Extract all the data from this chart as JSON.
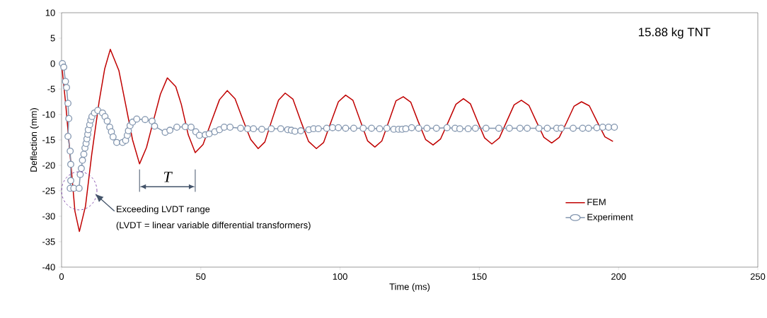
{
  "chart_data": {
    "type": "line",
    "title": "15.88 kg TNT",
    "xlabel": "Time (ms)",
    "ylabel": "Deflection (mm)",
    "xlim": [
      0,
      250
    ],
    "ylim": [
      -40,
      10
    ],
    "xticks": [
      0,
      50,
      100,
      150,
      200,
      250
    ],
    "yticks": [
      -40,
      -35,
      -30,
      -25,
      -20,
      -15,
      -10,
      -5,
      0,
      5,
      10
    ],
    "grid": false,
    "legend": "bottom right",
    "annotations": [
      "T",
      "Exceeding LVDT range",
      "(LVDT = linear variable differential transformers)"
    ],
    "series": [
      {
        "name": "FEM",
        "color": "#c00000",
        "marker": "none",
        "line_style": "solid",
        "x": [
          0,
          1.5,
          4.8,
          6.4,
          8.6,
          10.8,
          13.5,
          15.5,
          17.5,
          20.6,
          23,
          25.5,
          28,
          30.5,
          33,
          35.5,
          38,
          41,
          43,
          45.5,
          48,
          50.8,
          53.8,
          56.7,
          59.5,
          62.3,
          65.1,
          67.9,
          70.6,
          73,
          75.4,
          77.9,
          80.3,
          83.1,
          85.9,
          88.7,
          91.5,
          94.1,
          96.8,
          99.4,
          102,
          104.6,
          107.3,
          109.9,
          112.5,
          115,
          117.6,
          120.1,
          122.7,
          125.4,
          128,
          130.7,
          133.4,
          136.1,
          138.9,
          141.6,
          144.3,
          146.8,
          149.4,
          151.9,
          154.5,
          157.2,
          159.8,
          162.5,
          165.1,
          167.8,
          170.5,
          173.2,
          176,
          178.7,
          181.3,
          184,
          186.7,
          189.5,
          192.3,
          195.1,
          198
        ],
        "values": [
          0,
          -8,
          -29,
          -33,
          -28,
          -18,
          -7.4,
          -1,
          2.8,
          -1.4,
          -8,
          -15,
          -19.7,
          -16.5,
          -11.2,
          -6,
          -2.8,
          -4.5,
          -8,
          -14,
          -17.5,
          -15.9,
          -11.4,
          -7.1,
          -5.3,
          -6.9,
          -11,
          -14.9,
          -16.7,
          -15.4,
          -11.3,
          -7.2,
          -5.8,
          -7,
          -11.3,
          -15.3,
          -16.7,
          -15.5,
          -11.4,
          -7.5,
          -6.2,
          -7.2,
          -11.3,
          -15.2,
          -16.4,
          -15.2,
          -11.2,
          -7.3,
          -6.5,
          -7.6,
          -11.3,
          -14.9,
          -16,
          -14.8,
          -11.4,
          -8,
          -6.9,
          -7.9,
          -11.4,
          -14.6,
          -15.8,
          -14.6,
          -11.4,
          -8.1,
          -7.2,
          -8.2,
          -11.4,
          -14.5,
          -15.6,
          -14.5,
          -11.6,
          -8.4,
          -7.5,
          -8.3,
          -11.4,
          -14.4,
          -15.3
        ]
      },
      {
        "name": "Experiment",
        "color": "#8497b0",
        "marker": "circle",
        "line_style": "solid",
        "x": [
          0.3,
          0.8,
          1.4,
          1.8,
          2.3,
          2.6,
          2.3,
          3.1,
          3.3,
          3.3,
          3.1,
          4.4,
          6.3,
          6.7,
          7.1,
          7.5,
          8,
          8.4,
          8.8,
          9.1,
          9.4,
          9.6,
          10.1,
          10.5,
          10.9,
          11.8,
          13,
          14.7,
          15.6,
          16.4,
          17.3,
          17.9,
          18.5,
          19.8,
          21.9,
          23,
          23.6,
          24,
          24.6,
          25.5,
          27,
          30,
          32.5,
          33.4,
          37.2,
          38.9,
          41.4,
          44.4,
          46.5,
          48.2,
          49.5,
          51.6,
          53,
          55,
          56.7,
          58.4,
          60.5,
          64.3,
          66.8,
          68.9,
          71.9,
          75.3,
          78.7,
          81.2,
          82.5,
          83.8,
          85.9,
          88.8,
          90.5,
          92.2,
          95.2,
          97.3,
          99.4,
          102,
          104.9,
          108.3,
          111.3,
          114.2,
          116.8,
          119.3,
          121,
          122.3,
          123.6,
          125.7,
          128.2,
          131.2,
          134.6,
          138.4,
          141.3,
          143,
          146,
          148.6,
          152.4,
          157,
          160.8,
          164.6,
          167.2,
          171.4,
          174.4,
          177.8,
          179.4,
          183.7,
          187.1,
          189.2,
          192.2,
          194.3,
          196.4,
          198.5
        ],
        "values": [
          0,
          -0.7,
          -3.5,
          -4.7,
          -7.8,
          -10.8,
          -14.3,
          -17.2,
          -19.8,
          -23,
          -24.5,
          -24.5,
          -24.5,
          -21.8,
          -20.6,
          -19,
          -17.8,
          -16.6,
          -15.7,
          -14.8,
          -13.9,
          -13,
          -12,
          -11.1,
          -10.4,
          -9.7,
          -9.2,
          -9.7,
          -10.4,
          -11.3,
          -12.5,
          -13.4,
          -14.4,
          -15.5,
          -15.5,
          -15.1,
          -14.1,
          -13.2,
          -12.2,
          -11.5,
          -10.9,
          -11,
          -11.3,
          -12.3,
          -13.5,
          -13.1,
          -12.5,
          -12.4,
          -12.5,
          -13.4,
          -14.1,
          -14,
          -13.8,
          -13.4,
          -13,
          -12.5,
          -12.5,
          -12.7,
          -12.8,
          -12.8,
          -12.9,
          -12.8,
          -12.8,
          -13,
          -13.1,
          -13.3,
          -13.2,
          -13,
          -12.8,
          -12.8,
          -12.7,
          -12.6,
          -12.6,
          -12.7,
          -12.7,
          -12.7,
          -12.7,
          -12.8,
          -12.7,
          -12.9,
          -12.9,
          -12.9,
          -12.8,
          -12.6,
          -12.7,
          -12.7,
          -12.7,
          -12.6,
          -12.7,
          -12.8,
          -12.8,
          -12.7,
          -12.7,
          -12.7,
          -12.7,
          -12.7,
          -12.7,
          -12.7,
          -12.7,
          -12.7,
          -12.7,
          -12.7,
          -12.7,
          -12.7,
          -12.6,
          -12.5,
          -12.5,
          -12.5
        ]
      }
    ]
  }
}
